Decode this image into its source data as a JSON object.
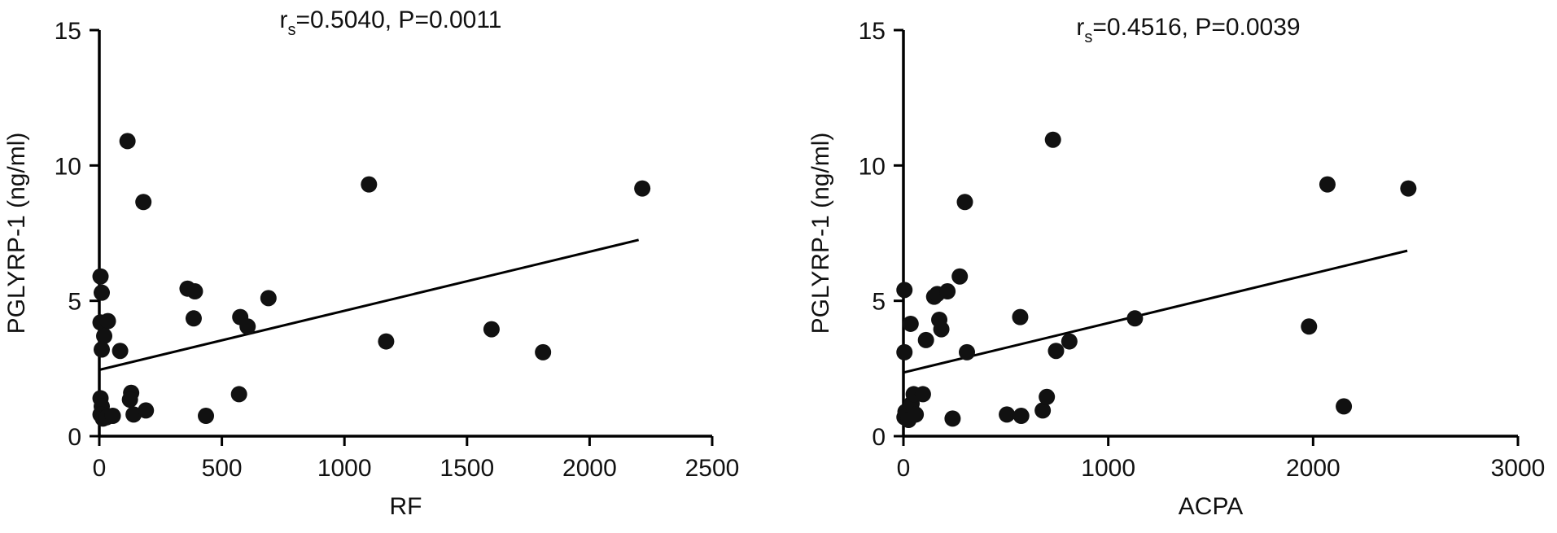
{
  "chart_data": [
    {
      "type": "scatter",
      "annotation": {
        "r_prefix": "r",
        "r_sub": "s",
        "text": "=0.5040, P=0.0011"
      },
      "xlabel": "RF",
      "ylabel": "PGLYRP-1 (ng/ml)",
      "xlim": [
        0,
        2500
      ],
      "ylim": [
        0,
        15
      ],
      "xticks": [
        "0",
        "500",
        "1000",
        "1500",
        "2000",
        "2500"
      ],
      "yticks": [
        "0",
        "5",
        "10",
        "15"
      ],
      "regression": {
        "x": [
          0,
          2200
        ],
        "y": [
          2.45,
          7.25
        ]
      },
      "points": [
        {
          "x": 5,
          "y": 5.9
        },
        {
          "x": 10,
          "y": 5.3
        },
        {
          "x": 5,
          "y": 4.2
        },
        {
          "x": 35,
          "y": 4.25
        },
        {
          "x": 20,
          "y": 3.7
        },
        {
          "x": 10,
          "y": 3.2
        },
        {
          "x": 85,
          "y": 3.15
        },
        {
          "x": 5,
          "y": 1.4
        },
        {
          "x": 10,
          "y": 1.1
        },
        {
          "x": 5,
          "y": 0.8
        },
        {
          "x": 15,
          "y": 0.65
        },
        {
          "x": 30,
          "y": 0.7
        },
        {
          "x": 55,
          "y": 0.75
        },
        {
          "x": 115,
          "y": 10.9
        },
        {
          "x": 180,
          "y": 8.65
        },
        {
          "x": 130,
          "y": 1.6
        },
        {
          "x": 125,
          "y": 1.35
        },
        {
          "x": 140,
          "y": 0.8
        },
        {
          "x": 190,
          "y": 0.95
        },
        {
          "x": 360,
          "y": 5.45
        },
        {
          "x": 390,
          "y": 5.35
        },
        {
          "x": 385,
          "y": 4.35
        },
        {
          "x": 435,
          "y": 0.75
        },
        {
          "x": 575,
          "y": 4.4
        },
        {
          "x": 605,
          "y": 4.05
        },
        {
          "x": 570,
          "y": 1.55
        },
        {
          "x": 690,
          "y": 5.1
        },
        {
          "x": 1100,
          "y": 9.3
        },
        {
          "x": 1170,
          "y": 3.5
        },
        {
          "x": 1600,
          "y": 3.95
        },
        {
          "x": 1810,
          "y": 3.1
        },
        {
          "x": 2215,
          "y": 9.15
        }
      ]
    },
    {
      "type": "scatter",
      "annotation": {
        "r_prefix": "r",
        "r_sub": "s",
        "text": "=0.4516, P=0.0039"
      },
      "xlabel": "ACPA",
      "ylabel": "PGLYRP-1 (ng/ml)",
      "xlim": [
        0,
        3000
      ],
      "ylim": [
        0,
        15
      ],
      "xticks": [
        "0",
        "1000",
        "2000",
        "3000"
      ],
      "yticks": [
        "0",
        "5",
        "10",
        "15"
      ],
      "regression": {
        "x": [
          0,
          2460
        ],
        "y": [
          2.35,
          6.85
        ]
      },
      "points": [
        {
          "x": 5,
          "y": 5.4
        },
        {
          "x": 5,
          "y": 3.1
        },
        {
          "x": 10,
          "y": 0.9
        },
        {
          "x": 5,
          "y": 0.7
        },
        {
          "x": 25,
          "y": 0.6
        },
        {
          "x": 40,
          "y": 1.2
        },
        {
          "x": 50,
          "y": 1.55
        },
        {
          "x": 35,
          "y": 4.15
        },
        {
          "x": 60,
          "y": 0.8
        },
        {
          "x": 95,
          "y": 1.55
        },
        {
          "x": 110,
          "y": 3.55
        },
        {
          "x": 150,
          "y": 5.15
        },
        {
          "x": 165,
          "y": 5.25
        },
        {
          "x": 175,
          "y": 4.3
        },
        {
          "x": 185,
          "y": 3.95
        },
        {
          "x": 215,
          "y": 5.35
        },
        {
          "x": 240,
          "y": 0.65
        },
        {
          "x": 275,
          "y": 5.9
        },
        {
          "x": 300,
          "y": 8.65
        },
        {
          "x": 310,
          "y": 3.1
        },
        {
          "x": 505,
          "y": 0.8
        },
        {
          "x": 570,
          "y": 4.4
        },
        {
          "x": 575,
          "y": 0.75
        },
        {
          "x": 680,
          "y": 0.95
        },
        {
          "x": 700,
          "y": 1.45
        },
        {
          "x": 730,
          "y": 10.95
        },
        {
          "x": 745,
          "y": 3.15
        },
        {
          "x": 810,
          "y": 3.5
        },
        {
          "x": 1130,
          "y": 4.35
        },
        {
          "x": 1980,
          "y": 4.05
        },
        {
          "x": 2070,
          "y": 9.3
        },
        {
          "x": 2150,
          "y": 1.1
        },
        {
          "x": 2465,
          "y": 9.15
        }
      ]
    }
  ]
}
